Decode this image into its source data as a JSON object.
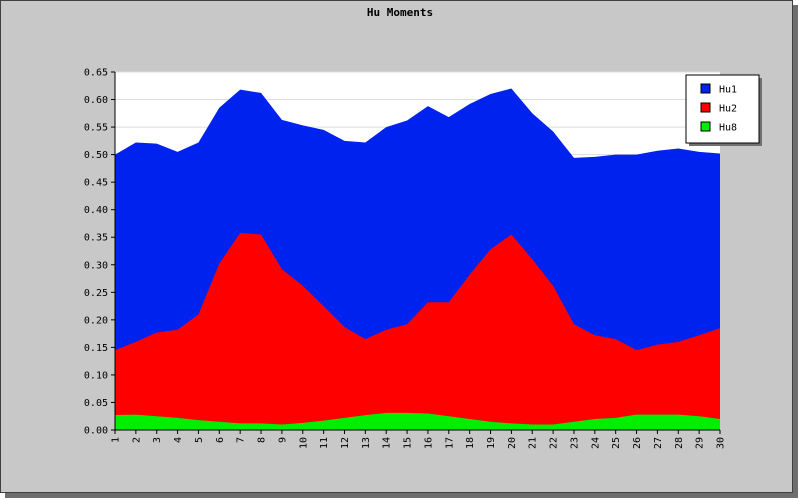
{
  "chart_data": {
    "type": "area",
    "title": "Hu Moments",
    "xlabel": "",
    "ylabel": "",
    "x": [
      1,
      2,
      3,
      4,
      5,
      6,
      7,
      8,
      9,
      10,
      11,
      12,
      13,
      14,
      15,
      16,
      17,
      18,
      19,
      20,
      21,
      22,
      23,
      24,
      25,
      26,
      27,
      28,
      29,
      30
    ],
    "ylim": [
      0,
      0.65
    ],
    "yticks": [
      "0.00",
      "0.05",
      "0.10",
      "0.15",
      "0.20",
      "0.25",
      "0.30",
      "0.35",
      "0.40",
      "0.45",
      "0.50",
      "0.55",
      "0.60",
      "0.65"
    ],
    "grid": "horizontal",
    "legend_position": "top-right",
    "series": [
      {
        "name": "Hu1",
        "color": "#0022ee",
        "values": [
          0.5,
          0.522,
          0.52,
          0.505,
          0.522,
          0.585,
          0.618,
          0.612,
          0.563,
          0.553,
          0.545,
          0.525,
          0.522,
          0.55,
          0.562,
          0.588,
          0.568,
          0.592,
          0.61,
          0.62,
          0.575,
          0.542,
          0.494,
          0.496,
          0.5,
          0.5,
          0.507,
          0.511,
          0.505,
          0.502
        ]
      },
      {
        "name": "Hu2",
        "color": "#ff0000",
        "values": [
          0.145,
          0.16,
          0.177,
          0.182,
          0.21,
          0.302,
          0.358,
          0.355,
          0.292,
          0.262,
          0.225,
          0.187,
          0.165,
          0.182,
          0.192,
          0.232,
          0.232,
          0.282,
          0.328,
          0.355,
          0.31,
          0.262,
          0.192,
          0.172,
          0.165,
          0.145,
          0.155,
          0.16,
          0.172,
          0.185
        ]
      },
      {
        "name": "Hu8",
        "color": "#00ee00",
        "values": [
          0.027,
          0.028,
          0.025,
          0.022,
          0.018,
          0.015,
          0.012,
          0.012,
          0.01,
          0.013,
          0.017,
          0.022,
          0.027,
          0.031,
          0.031,
          0.03,
          0.025,
          0.02,
          0.015,
          0.012,
          0.01,
          0.01,
          0.015,
          0.02,
          0.022,
          0.028,
          0.028,
          0.028,
          0.025,
          0.02
        ]
      }
    ]
  },
  "colors": {
    "frame_bg": "#c8c8c8",
    "plot_bg": "#ffffff",
    "gridline": "#dddddd"
  }
}
